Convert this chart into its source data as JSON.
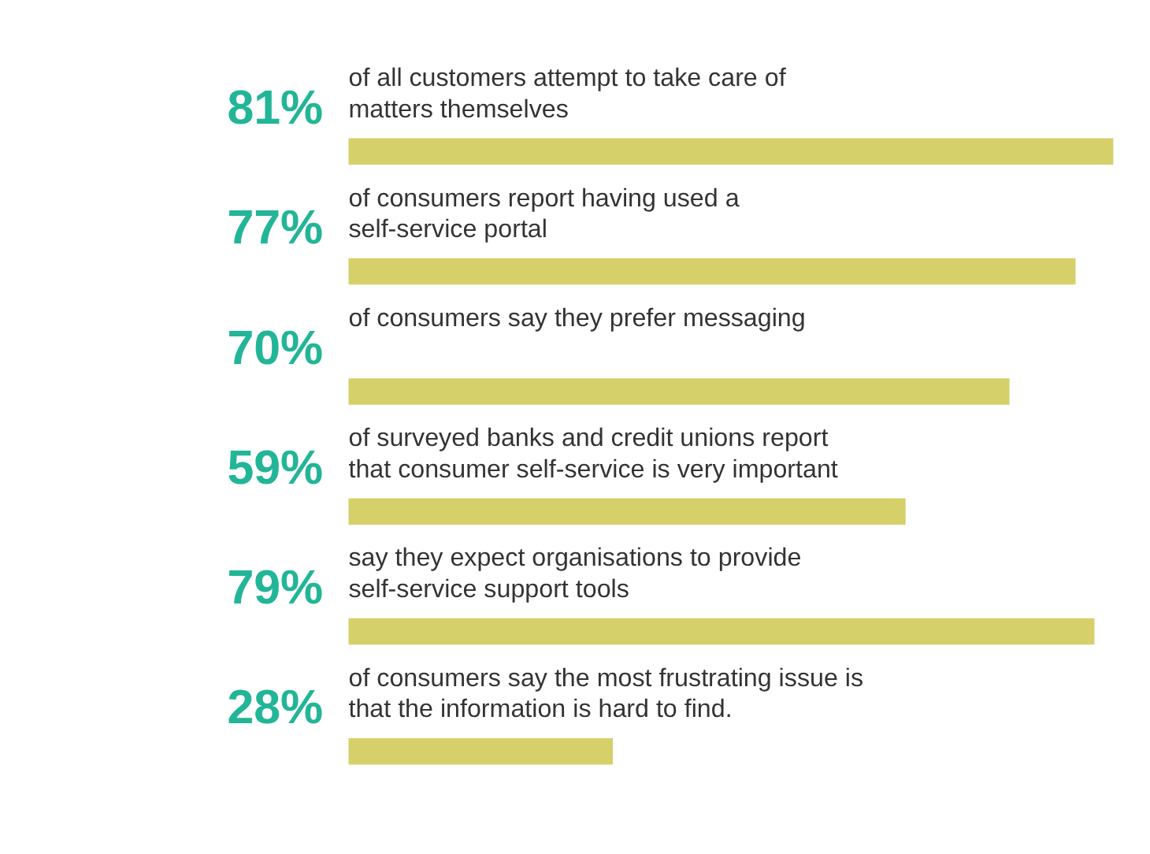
{
  "chart_data": {
    "type": "bar",
    "orientation": "horizontal",
    "categories": [
      "of all customers attempt to take care of\nmatters themselves",
      "of consumers report having used a\nself-service portal",
      "of consumers say they prefer messaging",
      "of surveyed banks and credit unions report\nthat consumer self-service is very important",
      "say they expect organisations to provide\nself-service support tools",
      "of consumers say the most frustrating issue is\nthat the information is hard to find."
    ],
    "values": [
      81,
      77,
      70,
      59,
      79,
      28
    ],
    "value_labels": [
      "81%",
      "77%",
      "70%",
      "59%",
      "79%",
      "28%"
    ],
    "color": "#d6d06a",
    "xlim": [
      0,
      81
    ]
  }
}
